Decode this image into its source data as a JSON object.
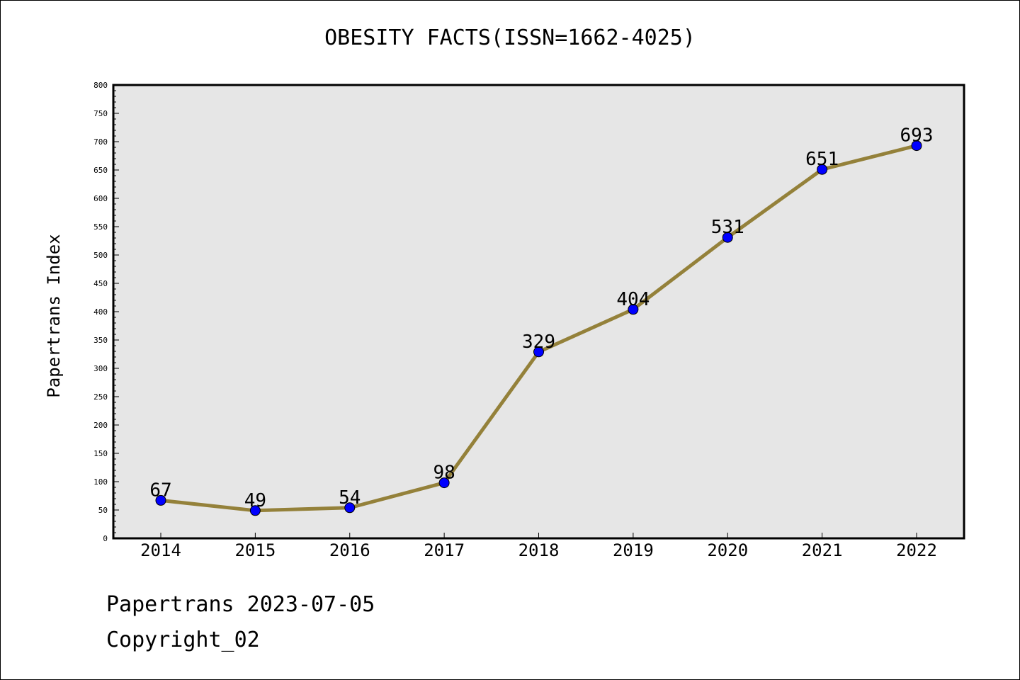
{
  "chart_data": {
    "type": "line",
    "title": "OBESITY FACTS(ISSN=1662-4025)",
    "xlabel": "",
    "ylabel": "Papertrans Index",
    "categories": [
      "2014",
      "2015",
      "2016",
      "2017",
      "2018",
      "2019",
      "2020",
      "2021",
      "2022"
    ],
    "series": [
      {
        "values": [
          67,
          49,
          54,
          98,
          329,
          404,
          531,
          651,
          693
        ]
      }
    ],
    "ylim": [
      0,
      800
    ],
    "yticks": [
      0,
      50,
      100,
      150,
      200,
      250,
      300,
      350,
      400,
      450,
      500,
      550,
      600,
      650,
      700,
      750,
      800
    ],
    "grid": false,
    "data_labels": true,
    "colors": {
      "line": "#94813a",
      "marker": "#0000ff",
      "plot_background": "#e6e6e6"
    }
  },
  "footer": {
    "line1": "Papertrans 2023-07-05",
    "line2": "Copyright_02"
  }
}
